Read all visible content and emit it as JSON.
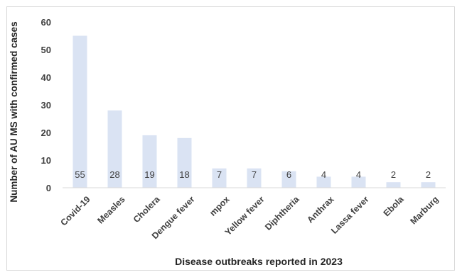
{
  "chart_data": {
    "type": "bar",
    "categories": [
      "Covid-19",
      "Measles",
      "Cholera",
      "Dengue fever",
      "mpox",
      "Yellow fever",
      "Diphtheria",
      "Anthrax",
      "Lassa fever",
      "Ebola",
      "Marburg"
    ],
    "values": [
      55,
      28,
      19,
      18,
      7,
      7,
      6,
      4,
      4,
      2,
      2
    ],
    "xlabel": "Disease outbreaks reported in 2023",
    "ylabel": "Number of AU MS with confirmed cases",
    "ylim": [
      0,
      60
    ],
    "yticks": [
      0,
      10,
      20,
      30,
      40,
      50,
      60
    ],
    "data_labels": true,
    "grid": false,
    "legend": "none",
    "colors": {
      "bar": "#dae3f3",
      "axis": "#d9d9d9",
      "text": "#404040"
    }
  }
}
